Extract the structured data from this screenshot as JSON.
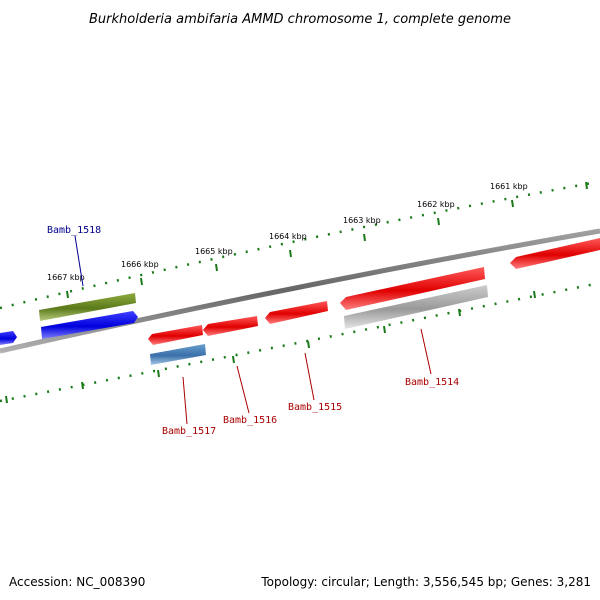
{
  "title": "Burkholderia ambifaria AMMD chromosome 1, complete genome",
  "footer": {
    "accession": "Accession: NC_008390",
    "summary": "Topology: circular; Length: 3,556,545 bp; Genes: 3,281"
  },
  "kbp_labels": [
    "1667 kbp",
    "1666 kbp",
    "1665 kbp",
    "1664 kbp",
    "1663 kbp",
    "1662 kbp",
    "1661 kbp"
  ],
  "gene_labels": [
    {
      "text": "Bamb_1518",
      "color": "#00008b"
    },
    {
      "text": "Bamb_1517",
      "color": "#aa0000"
    },
    {
      "text": "Bamb_1516",
      "color": "#aa0000"
    },
    {
      "text": "Bamb_1515",
      "color": "#aa0000"
    },
    {
      "text": "Bamb_1514",
      "color": "#aa0000"
    }
  ],
  "colors": {
    "backbone": "#808080",
    "tick": "#1a7a1a",
    "gene_red": "#ee0000",
    "gene_blue": "#0000ee",
    "gene_olive": "#6b8e23",
    "gene_steel": "#4682b4",
    "gene_gray": "#aaaaaa"
  }
}
